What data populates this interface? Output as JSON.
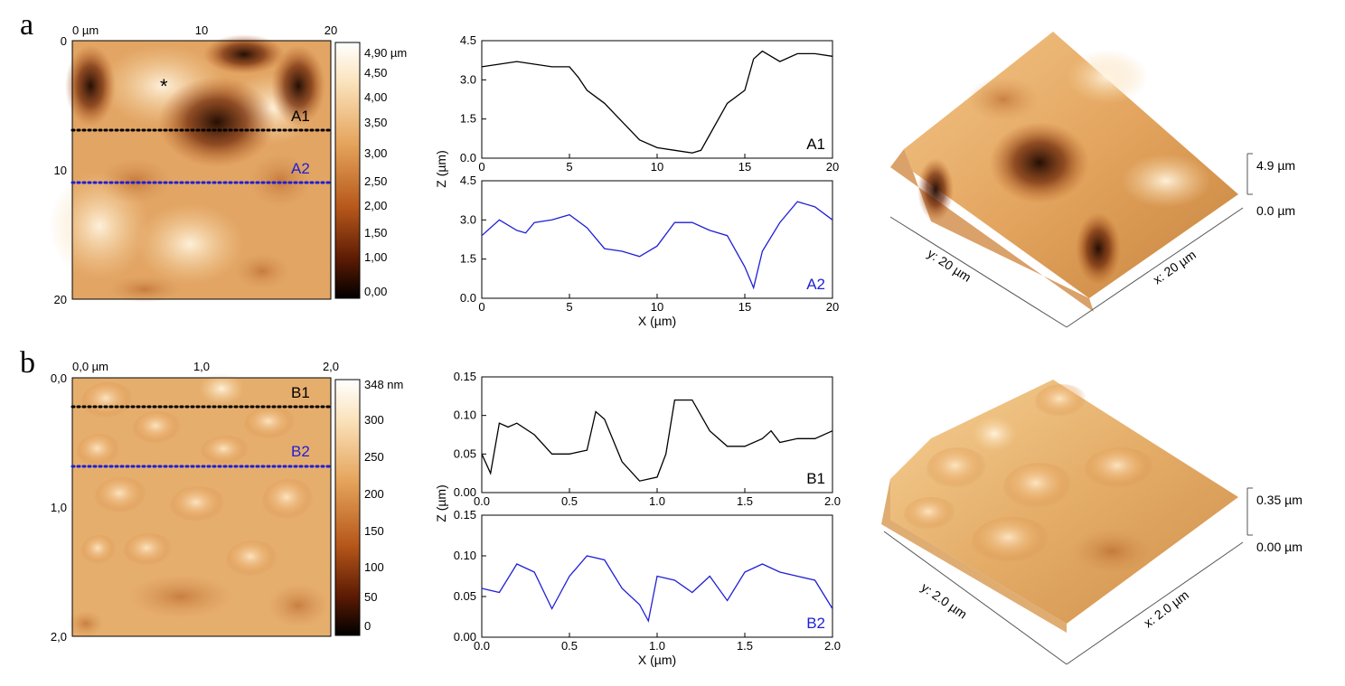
{
  "colors": {
    "black_trace": "#000000",
    "blue_trace": "#1f1fd6",
    "afm_dark": "#1a0700",
    "afm_mid": "#b5561a",
    "afm_light": "#ffffff"
  },
  "panel_a": {
    "label": "a",
    "afm_image": {
      "top_ticks": [
        "0 µm",
        "10",
        "20"
      ],
      "left_ticks": [
        "0",
        "10",
        "20"
      ],
      "colorbar_ticks": [
        "4,90 µm",
        "4,50",
        "4,00",
        "3,50",
        "3,00",
        "2,50",
        "2,00",
        "1,50",
        "1,00",
        "0,00"
      ],
      "marker": "*",
      "lines": [
        {
          "label": "A1",
          "color": "#000000"
        },
        {
          "label": "A2",
          "color": "#1f1fd6"
        }
      ]
    },
    "surface3d": {
      "z_top": "4.9 µm",
      "z_bottom": "0.0 µm",
      "y_axis": "y: 20 µm",
      "x_axis": "x: 20 µm"
    }
  },
  "panel_b": {
    "label": "b",
    "afm_image": {
      "top_ticks": [
        "0,0 µm",
        "1,0",
        "2,0"
      ],
      "left_ticks": [
        "0,0",
        "1,0",
        "2,0"
      ],
      "colorbar_ticks": [
        "348 nm",
        "300",
        "250",
        "200",
        "150",
        "100",
        "50",
        "0"
      ],
      "lines": [
        {
          "label": "B1",
          "color": "#000000"
        },
        {
          "label": "B2",
          "color": "#1f1fd6"
        }
      ]
    },
    "surface3d": {
      "z_top": "0.35 µm",
      "z_bottom": "0.00 µm",
      "y_axis": "y: 2.0 µm",
      "x_axis": "x: 2.0 µm"
    }
  },
  "chart_data": [
    {
      "type": "line",
      "id": "A1",
      "label": "A1",
      "color": "#000000",
      "xlabel": "",
      "ylabel": "Z (µm)",
      "xlim": [
        0,
        20
      ],
      "ylim": [
        0,
        4.5
      ],
      "xticks": [
        "0",
        "5",
        "10",
        "15",
        "20"
      ],
      "yticks": [
        "0.0",
        "1.5",
        "3.0",
        "4.5"
      ],
      "x": [
        0,
        1,
        2,
        3,
        4,
        5,
        5.5,
        6,
        7,
        8,
        9,
        10,
        11,
        12,
        12.5,
        13,
        14,
        15,
        15.5,
        16,
        17,
        18,
        19,
        20
      ],
      "y": [
        3.5,
        3.6,
        3.7,
        3.6,
        3.5,
        3.5,
        3.1,
        2.6,
        2.1,
        1.4,
        0.7,
        0.4,
        0.3,
        0.2,
        0.3,
        0.9,
        2.1,
        2.6,
        3.8,
        4.1,
        3.7,
        4.0,
        4.0,
        3.9
      ]
    },
    {
      "type": "line",
      "id": "A2",
      "label": "A2",
      "color": "#1f1fd6",
      "xlabel": "X (µm)",
      "ylabel": "",
      "xlim": [
        0,
        20
      ],
      "ylim": [
        0,
        4.5
      ],
      "xticks": [
        "0",
        "5",
        "10",
        "15",
        "20"
      ],
      "yticks": [
        "0.0",
        "1.5",
        "3.0",
        "4.5"
      ],
      "x": [
        0,
        1,
        2,
        2.5,
        3,
        4,
        5,
        6,
        7,
        8,
        9,
        10,
        11,
        12,
        13,
        14,
        15,
        15.5,
        16,
        17,
        18,
        19,
        20
      ],
      "y": [
        2.4,
        3.0,
        2.6,
        2.5,
        2.9,
        3.0,
        3.2,
        2.7,
        1.9,
        1.8,
        1.6,
        2.0,
        2.9,
        2.9,
        2.6,
        2.4,
        1.2,
        0.4,
        1.8,
        2.9,
        3.7,
        3.5,
        3.0
      ]
    },
    {
      "type": "line",
      "id": "B1",
      "label": "B1",
      "color": "#000000",
      "xlabel": "",
      "ylabel": "Z (µm)",
      "xlim": [
        0,
        2.0
      ],
      "ylim": [
        0,
        0.15
      ],
      "xticks": [
        "0.0",
        "0.5",
        "1.0",
        "1.5",
        "2.0"
      ],
      "yticks": [
        "0.00",
        "0.05",
        "0.10",
        "0.15"
      ],
      "x": [
        0,
        0.05,
        0.1,
        0.15,
        0.2,
        0.3,
        0.4,
        0.5,
        0.6,
        0.65,
        0.7,
        0.8,
        0.9,
        1.0,
        1.05,
        1.1,
        1.2,
        1.3,
        1.4,
        1.5,
        1.6,
        1.65,
        1.7,
        1.8,
        1.9,
        2.0
      ],
      "y": [
        0.05,
        0.025,
        0.09,
        0.085,
        0.09,
        0.075,
        0.05,
        0.05,
        0.055,
        0.105,
        0.095,
        0.04,
        0.015,
        0.02,
        0.05,
        0.12,
        0.12,
        0.08,
        0.06,
        0.06,
        0.07,
        0.08,
        0.065,
        0.07,
        0.07,
        0.08
      ]
    },
    {
      "type": "line",
      "id": "B2",
      "label": "B2",
      "color": "#1f1fd6",
      "xlabel": "X (µm)",
      "ylabel": "",
      "xlim": [
        0,
        2.0
      ],
      "ylim": [
        0,
        0.15
      ],
      "xticks": [
        "0.0",
        "0.5",
        "1.0",
        "1.5",
        "2.0"
      ],
      "yticks": [
        "0.00",
        "0.05",
        "0.10",
        "0.15"
      ],
      "x": [
        0,
        0.1,
        0.2,
        0.3,
        0.4,
        0.5,
        0.6,
        0.7,
        0.8,
        0.9,
        0.95,
        1.0,
        1.1,
        1.2,
        1.3,
        1.4,
        1.5,
        1.6,
        1.7,
        1.8,
        1.9,
        2.0
      ],
      "y": [
        0.06,
        0.055,
        0.09,
        0.08,
        0.035,
        0.075,
        0.1,
        0.095,
        0.06,
        0.04,
        0.02,
        0.075,
        0.07,
        0.055,
        0.075,
        0.045,
        0.08,
        0.09,
        0.08,
        0.075,
        0.07,
        0.035
      ]
    }
  ]
}
